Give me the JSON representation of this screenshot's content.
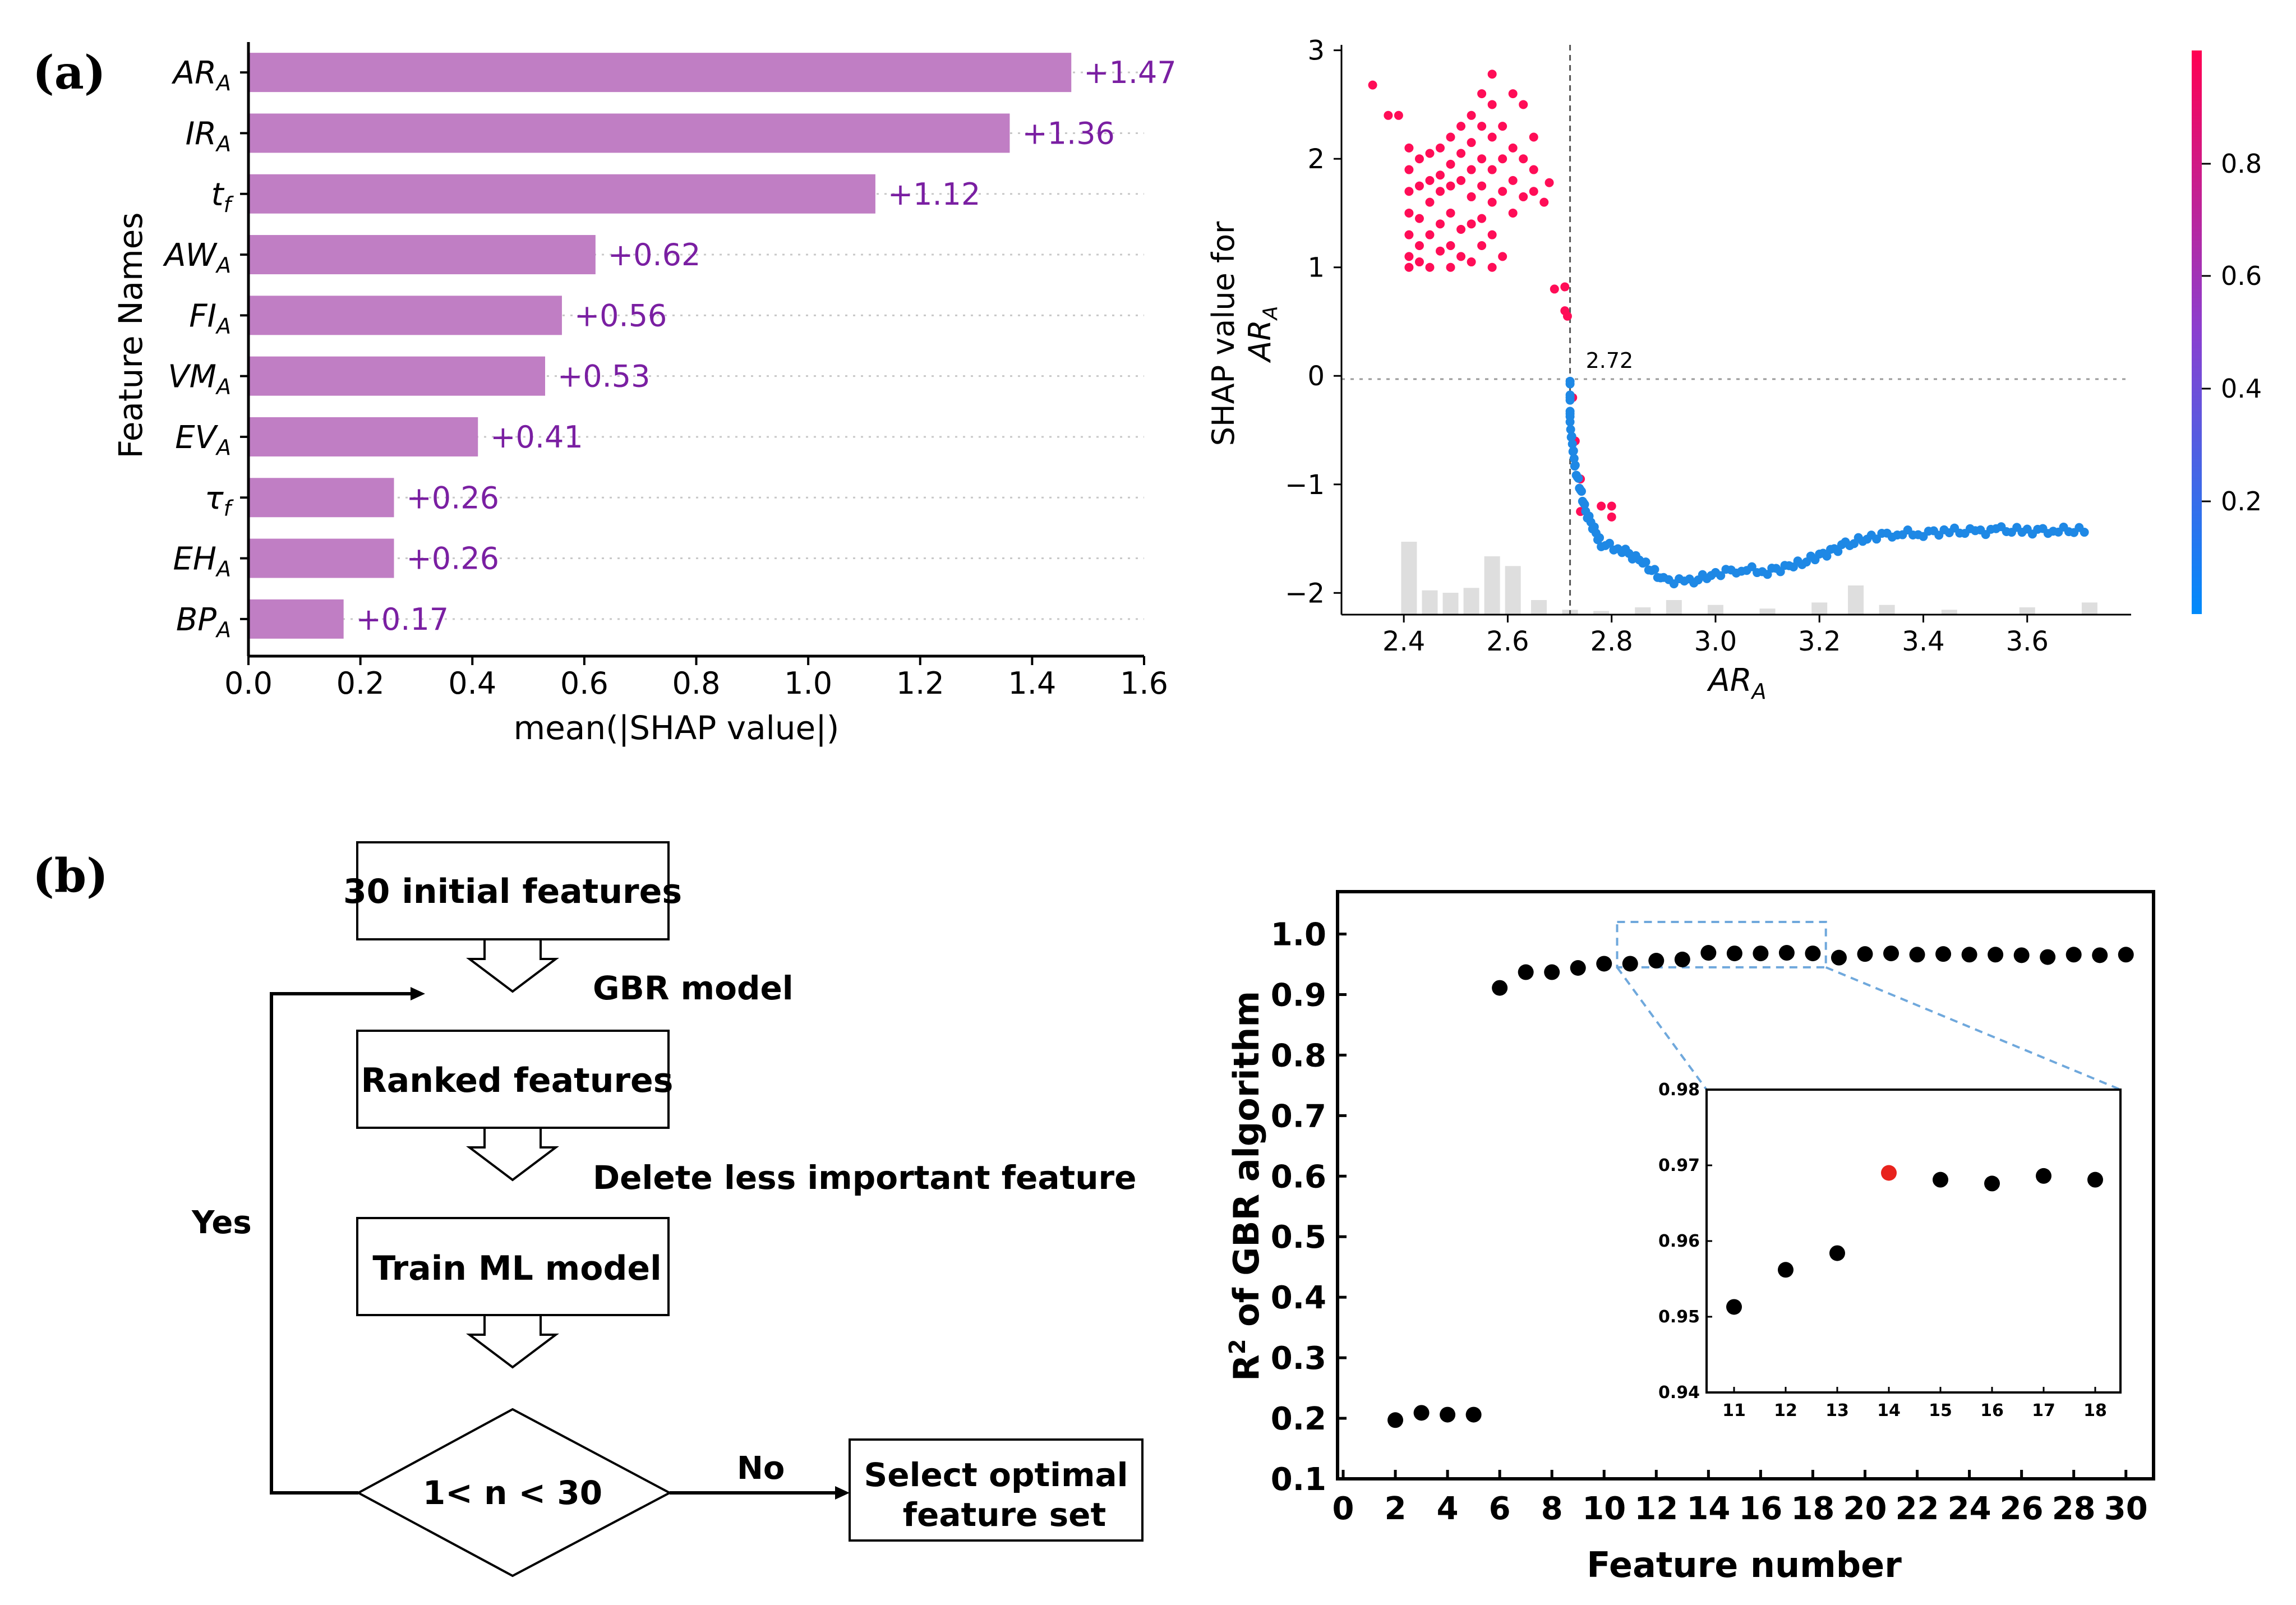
{
  "panel_labels": {
    "a": "(a)",
    "b": "(b)"
  },
  "colors": {
    "bar": "#c07ec4",
    "bar_label": "#7a1fa2",
    "shap_high": "#ff0d57",
    "shap_low": "#1e88e5",
    "hist": "#dedede",
    "inset_box": "#6fa8dc",
    "highlight_point": "#e8231d"
  },
  "chart_data": [
    {
      "type": "bar",
      "orientation": "horizontal",
      "xlabel": "mean(|SHAP value|)",
      "ylabel": "Feature Names",
      "xlim": [
        0,
        1.6
      ],
      "xticks": [
        "0.0",
        "0.2",
        "0.4",
        "0.6",
        "0.8",
        "1.0",
        "1.2",
        "1.4",
        "1.6"
      ],
      "categories": [
        {
          "base": "AR",
          "sub": "A"
        },
        {
          "base": "IR",
          "sub": "A"
        },
        {
          "base": "t",
          "sub": "f"
        },
        {
          "base": "AW",
          "sub": "A"
        },
        {
          "base": "FI",
          "sub": "A"
        },
        {
          "base": "VM",
          "sub": "A"
        },
        {
          "base": "EV",
          "sub": "A"
        },
        {
          "base": "τ",
          "sub": "f"
        },
        {
          "base": "EH",
          "sub": "A"
        },
        {
          "base": "BP",
          "sub": "A"
        }
      ],
      "values": [
        1.47,
        1.36,
        1.12,
        0.62,
        0.56,
        0.53,
        0.41,
        0.26,
        0.26,
        0.17
      ],
      "value_labels": [
        "+1.47",
        "+1.36",
        "+1.12",
        "+0.62",
        "+0.56",
        "+0.53",
        "+0.41",
        "+0.26",
        "+0.26",
        "+0.17"
      ]
    },
    {
      "type": "scatter",
      "xlabel_base": "AR",
      "xlabel_sub": "A",
      "ylabel_line1": "SHAP value for",
      "ylabel_line2_base": "AR",
      "ylabel_line2_sub": "A",
      "xlim": [
        2.28,
        3.8
      ],
      "ylim": [
        -2.2,
        3.05
      ],
      "xticks": [
        "2.4",
        "2.6",
        "2.8",
        "3.0",
        "3.2",
        "3.4",
        "3.6"
      ],
      "yticks": [
        "3",
        "2",
        "1",
        "0",
        "−1",
        "−2"
      ],
      "threshold": 2.72,
      "threshold_label": "2.72",
      "colorbar_ticks": [
        "0.8",
        "0.6",
        "0.4",
        "0.2"
      ],
      "high_points": [
        [
          2.34,
          2.68
        ],
        [
          2.37,
          2.4
        ],
        [
          2.39,
          2.4
        ],
        [
          2.41,
          2.1
        ],
        [
          2.41,
          1.9
        ],
        [
          2.41,
          1.7
        ],
        [
          2.41,
          1.5
        ],
        [
          2.41,
          1.3
        ],
        [
          2.41,
          1.1
        ],
        [
          2.41,
          1.0
        ],
        [
          2.43,
          2.0
        ],
        [
          2.43,
          1.75
        ],
        [
          2.43,
          1.45
        ],
        [
          2.43,
          1.2
        ],
        [
          2.43,
          1.05
        ],
        [
          2.45,
          2.05
        ],
        [
          2.45,
          1.8
        ],
        [
          2.45,
          1.6
        ],
        [
          2.45,
          1.3
        ],
        [
          2.45,
          1.0
        ],
        [
          2.47,
          2.1
        ],
        [
          2.47,
          1.85
        ],
        [
          2.47,
          1.7
        ],
        [
          2.47,
          1.4
        ],
        [
          2.47,
          1.15
        ],
        [
          2.49,
          2.2
        ],
        [
          2.49,
          1.95
        ],
        [
          2.49,
          1.75
        ],
        [
          2.49,
          1.5
        ],
        [
          2.49,
          1.2
        ],
        [
          2.49,
          1.0
        ],
        [
          2.51,
          2.3
        ],
        [
          2.51,
          2.05
        ],
        [
          2.51,
          1.8
        ],
        [
          2.51,
          1.35
        ],
        [
          2.51,
          1.1
        ],
        [
          2.53,
          2.4
        ],
        [
          2.53,
          2.15
        ],
        [
          2.53,
          1.9
        ],
        [
          2.53,
          1.65
        ],
        [
          2.53,
          1.4
        ],
        [
          2.53,
          1.05
        ],
        [
          2.55,
          2.6
        ],
        [
          2.55,
          2.3
        ],
        [
          2.55,
          2.0
        ],
        [
          2.55,
          1.75
        ],
        [
          2.55,
          1.45
        ],
        [
          2.55,
          1.2
        ],
        [
          2.57,
          2.78
        ],
        [
          2.57,
          2.5
        ],
        [
          2.57,
          2.2
        ],
        [
          2.57,
          1.9
        ],
        [
          2.57,
          1.6
        ],
        [
          2.57,
          1.3
        ],
        [
          2.57,
          1.0
        ],
        [
          2.59,
          2.3
        ],
        [
          2.59,
          2.0
        ],
        [
          2.59,
          1.7
        ],
        [
          2.59,
          1.1
        ],
        [
          2.61,
          2.6
        ],
        [
          2.61,
          2.1
        ],
        [
          2.61,
          1.8
        ],
        [
          2.61,
          1.5
        ],
        [
          2.63,
          2.5
        ],
        [
          2.63,
          2.0
        ],
        [
          2.63,
          1.65
        ],
        [
          2.65,
          2.2
        ],
        [
          2.65,
          1.9
        ],
        [
          2.65,
          1.7
        ],
        [
          2.67,
          1.6
        ],
        [
          2.68,
          1.78
        ],
        [
          2.69,
          0.8
        ],
        [
          2.71,
          0.82
        ],
        [
          2.71,
          0.6
        ],
        [
          2.715,
          0.55
        ],
        [
          2.725,
          -0.2
        ],
        [
          2.73,
          -0.6
        ],
        [
          2.74,
          -0.95
        ],
        [
          2.74,
          -1.25
        ],
        [
          2.78,
          -1.2
        ],
        [
          2.8,
          -1.3
        ],
        [
          2.8,
          -1.2
        ]
      ],
      "blue_curve": [
        [
          2.72,
          -0.05
        ],
        [
          2.72,
          -0.45
        ],
        [
          2.73,
          -0.85
        ],
        [
          2.75,
          -1.25
        ],
        [
          2.78,
          -1.55
        ],
        [
          2.82,
          -1.6
        ],
        [
          2.86,
          -1.72
        ],
        [
          2.9,
          -1.88
        ],
        [
          2.95,
          -1.9
        ],
        [
          3.0,
          -1.82
        ],
        [
          3.05,
          -1.78
        ],
        [
          3.1,
          -1.8
        ],
        [
          3.15,
          -1.75
        ],
        [
          3.2,
          -1.66
        ],
        [
          3.25,
          -1.56
        ],
        [
          3.3,
          -1.48
        ],
        [
          3.35,
          -1.45
        ],
        [
          3.4,
          -1.45
        ],
        [
          3.45,
          -1.43
        ],
        [
          3.5,
          -1.44
        ],
        [
          3.55,
          -1.42
        ],
        [
          3.6,
          -1.43
        ],
        [
          3.65,
          -1.42
        ],
        [
          3.72,
          -1.43
        ]
      ],
      "histogram": {
        "centers": [
          2.41,
          2.45,
          2.49,
          2.53,
          2.57,
          2.61,
          2.66,
          2.72,
          2.78,
          2.86,
          2.92,
          3.0,
          3.1,
          3.2,
          3.27,
          3.33,
          3.45,
          3.6,
          3.72
        ],
        "counts": [
          60,
          20,
          18,
          22,
          48,
          40,
          12,
          4,
          3,
          6,
          12,
          8,
          5,
          10,
          24,
          8,
          4,
          6,
          10
        ]
      }
    },
    {
      "type": "flowchart",
      "nodes": {
        "initial": "30 initial features",
        "gbr": "GBR model",
        "ranked": "Ranked features",
        "delete": "Delete less important feature",
        "train": "Train ML model",
        "decision": "1< n < 30",
        "select_line1": "Select optimal",
        "select_line2": "feature set"
      },
      "edge_yes": "Yes",
      "edge_no": "No"
    },
    {
      "type": "scatter",
      "xlabel": "Feature number",
      "ylabel_base": "R",
      "ylabel_sup": "2",
      "ylabel_rest": " of GBR algorithm",
      "xlim": [
        0,
        30.5
      ],
      "ylim": [
        0.1,
        1.07
      ],
      "xticks": [
        "0",
        "2",
        "4",
        "6",
        "8",
        "10",
        "12",
        "14",
        "16",
        "18",
        "20",
        "22",
        "24",
        "26",
        "28",
        "30"
      ],
      "yticks": [
        "0.1",
        "0.2",
        "0.3",
        "0.4",
        "0.5",
        "0.6",
        "0.7",
        "0.8",
        "0.9",
        "1.0"
      ],
      "points": [
        [
          2,
          0.197
        ],
        [
          3,
          0.209
        ],
        [
          4,
          0.206
        ],
        [
          5,
          0.206
        ],
        [
          6,
          0.911
        ],
        [
          7,
          0.937
        ],
        [
          8,
          0.937
        ],
        [
          9,
          0.944
        ],
        [
          10,
          0.951
        ],
        [
          11,
          0.951
        ],
        [
          12,
          0.956
        ],
        [
          13,
          0.958
        ],
        [
          14,
          0.969
        ],
        [
          15,
          0.968
        ],
        [
          16,
          0.968
        ],
        [
          17,
          0.969
        ],
        [
          18,
          0.968
        ],
        [
          19,
          0.961
        ],
        [
          20,
          0.967
        ],
        [
          21,
          0.968
        ],
        [
          22,
          0.966
        ],
        [
          23,
          0.967
        ],
        [
          24,
          0.966
        ],
        [
          25,
          0.966
        ],
        [
          26,
          0.965
        ],
        [
          27,
          0.962
        ],
        [
          28,
          0.966
        ],
        [
          29,
          0.965
        ],
        [
          30,
          0.966
        ]
      ],
      "zoom_box": {
        "x": [
          10.5,
          18.5
        ],
        "y": [
          0.945,
          1.02
        ]
      },
      "inset": {
        "xlim": [
          10.6,
          18.4
        ],
        "ylim": [
          0.94,
          0.98
        ],
        "xticks": [
          "11",
          "12",
          "13",
          "14",
          "15",
          "16",
          "17",
          "18"
        ],
        "yticks": [
          "0.94",
          "0.95",
          "0.96",
          "0.97",
          "0.98"
        ],
        "points": [
          [
            11,
            0.9513
          ],
          [
            12,
            0.9562
          ],
          [
            13,
            0.9584
          ],
          [
            14,
            0.969
          ],
          [
            15,
            0.9681
          ],
          [
            16,
            0.9676
          ],
          [
            17,
            0.9686
          ],
          [
            18,
            0.9681
          ]
        ],
        "highlight_index": 3
      }
    }
  ]
}
